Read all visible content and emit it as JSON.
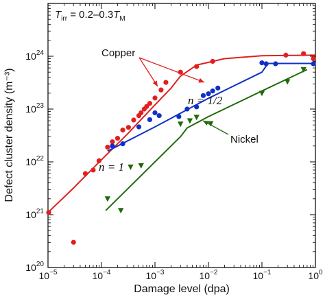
{
  "chart_data": {
    "type": "scatter",
    "title": "",
    "xlabel": "Damage level (dpa)",
    "ylabel": "Defect cluster density (m⁻³)",
    "xscale": "log",
    "yscale": "log",
    "xlim": [
      1e-05,
      1
    ],
    "ylim": [
      1e+20,
      1e+25
    ],
    "grid": false,
    "x_tick_labels": [
      {
        "value": 1e-05,
        "base": "10",
        "exp": "−5"
      },
      {
        "value": 0.0001,
        "base": "10",
        "exp": "−4"
      },
      {
        "value": 0.001,
        "base": "10",
        "exp": "−3"
      },
      {
        "value": 0.01,
        "base": "10",
        "exp": "−2"
      },
      {
        "value": 0.1,
        "base": "10",
        "exp": "−1"
      },
      {
        "value": 1,
        "base": "10",
        "exp": "0"
      }
    ],
    "y_tick_labels": [
      {
        "value": 1e+20,
        "base": "10",
        "exp": "20"
      },
      {
        "value": 1e+21,
        "base": "10",
        "exp": "21"
      },
      {
        "value": 1e+22,
        "base": "10",
        "exp": "22"
      },
      {
        "value": 1e+23,
        "base": "10",
        "exp": "23"
      },
      {
        "value": 1e+24,
        "base": "10",
        "exp": "24"
      }
    ],
    "annotations": {
      "condition": {
        "T": "T",
        "irr": "irr",
        "middle": " = 0.2–0.3",
        "M": "M"
      },
      "copper": "Copper",
      "nickel": "Nickel",
      "n_half": "n = 1/2",
      "n_one": "n = 1"
    },
    "series": [
      {
        "color": "#e02020",
        "marker": "circle",
        "points": [
          [
            1e-05,
            1.1e+21
          ],
          [
            3e-05,
            3e+20
          ],
          [
            5e-05,
            6e+21
          ],
          [
            7e-05,
            7e+21
          ],
          [
            9e-05,
            1.05e+22
          ],
          [
            0.00013,
            1.9e+22
          ],
          [
            0.00016,
            2.4e+22
          ],
          [
            0.0002,
            2.8e+22
          ],
          [
            0.00025,
            4e+22
          ],
          [
            0.00032,
            4.5e+22
          ],
          [
            0.0004,
            6.2e+22
          ],
          [
            0.0005,
            7.5e+22
          ],
          [
            0.00055,
            8.5e+22
          ],
          [
            0.00063,
            1e+23
          ],
          [
            0.0007,
            1.12e+23
          ],
          [
            0.0008,
            1.28e+23
          ],
          [
            0.001,
            1.62e+23
          ],
          [
            0.0013,
            2.3e+23
          ],
          [
            0.0016,
            3.2e+23
          ],
          [
            0.003,
            5e+23
          ],
          [
            0.006,
            6.4e+23
          ],
          [
            0.012,
            8e+23
          ],
          [
            0.28,
            1.05e+24
          ],
          [
            0.6,
            1.12e+24
          ],
          [
            1.0,
            9e+23
          ]
        ],
        "fit": [
          [
            1e-05,
            1.1e+21
          ],
          [
            3e-05,
            3.2e+21
          ],
          [
            0.0001,
            1.1e+22
          ],
          [
            0.0003,
            3.3e+22
          ],
          [
            0.001,
            1.2e+23
          ],
          [
            0.002,
            2.5e+23
          ],
          [
            0.003,
            4.2e+23
          ],
          [
            0.006,
            6.8e+23
          ],
          [
            0.02,
            9e+23
          ],
          [
            0.1,
            1.02e+24
          ],
          [
            1,
            1.05e+24
          ]
        ]
      },
      {
        "color": "#1030c8",
        "marker": "circle",
        "points": [
          [
            0.00016,
            2e+22
          ],
          [
            0.00025,
            2.2e+22
          ],
          [
            0.0005,
            4.6e+22
          ],
          [
            0.0008,
            6.3e+22
          ],
          [
            0.001,
            8.5e+22
          ],
          [
            0.0012,
            7.5e+22
          ],
          [
            0.0028,
            7.2e+22
          ],
          [
            0.004,
            1e+23
          ],
          [
            0.006,
            1.1e+23
          ],
          [
            0.008,
            1.8e+23
          ],
          [
            0.01,
            1.95e+23
          ],
          [
            0.012,
            2.2e+23
          ],
          [
            0.015,
            2.5e+23
          ],
          [
            0.1,
            7.5e+23
          ],
          [
            0.12,
            7.2e+23
          ],
          [
            0.18,
            7.2e+23
          ],
          [
            1.0,
            7.2e+23
          ]
        ],
        "fit": [
          [
            0.00013,
            1.6e+22
          ],
          [
            0.001,
            4.6e+22
          ],
          [
            0.01,
            1.6e+23
          ],
          [
            0.1,
            5e+23
          ],
          [
            0.13,
            7.3e+23
          ],
          [
            1,
            7.3e+23
          ]
        ]
      },
      {
        "color": "#1f6a0a",
        "marker": "triangle-down",
        "points": [
          [
            0.00013,
            2e+21
          ],
          [
            0.00023,
            1.2e+21
          ],
          [
            0.00035,
            8e+21
          ],
          [
            0.00055,
            8.5e+21
          ],
          [
            0.003,
            5.2e+22
          ],
          [
            0.0045,
            6e+22
          ],
          [
            0.006,
            7e+22
          ],
          [
            0.011,
            5.3e+22
          ],
          [
            0.1,
            2e+23
          ],
          [
            0.3,
            3.3e+23
          ],
          [
            0.6,
            5.6e+23
          ]
        ],
        "fit": [
          [
            0.00012,
            1.2e+21
          ],
          [
            0.003,
            3e+22
          ],
          [
            0.004,
            4.4e+22
          ],
          [
            0.01,
            7.2e+22
          ],
          [
            0.1,
            2.2e+23
          ],
          [
            0.7,
            5.6e+23
          ]
        ]
      }
    ]
  }
}
